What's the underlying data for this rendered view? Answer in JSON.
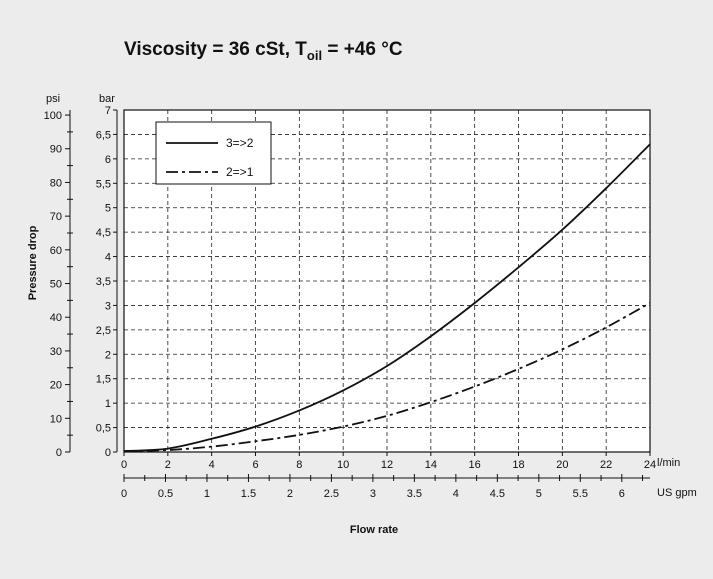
{
  "chart_data": {
    "type": "line",
    "title": {
      "prefix": "Viscosity = 36 cSt, T",
      "subscript": "oil",
      "suffix": " = +46 °C"
    },
    "ylabel": "Pressure drop",
    "xlabel": "Flow rate",
    "units": {
      "bar": "bar",
      "psi": "psi",
      "lmin": "l/min",
      "usgpm": "US gpm"
    },
    "x_lmin": {
      "range": [
        0,
        24
      ],
      "ticks": [
        "0",
        "2",
        "4",
        "6",
        "8",
        "10",
        "12",
        "14",
        "16",
        "18",
        "20",
        "22",
        "24"
      ]
    },
    "x_usgpm": {
      "range": [
        0,
        6.34
      ],
      "ticks": [
        {
          "v": 0,
          "label": "0"
        },
        {
          "v": 0.5,
          "label": "0.5"
        },
        {
          "v": 1,
          "label": "1"
        },
        {
          "v": 1.5,
          "label": "1.5"
        },
        {
          "v": 2,
          "label": "2"
        },
        {
          "v": 2.5,
          "label": "2.5"
        },
        {
          "v": 3,
          "label": "3"
        },
        {
          "v": 3.5,
          "label": "3.5"
        },
        {
          "v": 4,
          "label": "4"
        },
        {
          "v": 4.5,
          "label": "4.5"
        },
        {
          "v": 5,
          "label": "5"
        },
        {
          "v": 5.5,
          "label": "5.5"
        },
        {
          "v": 6,
          "label": "6"
        }
      ]
    },
    "y_bar": {
      "range": [
        0,
        7
      ],
      "ticks": [
        {
          "v": 0,
          "label": "0"
        },
        {
          "v": 0.5,
          "label": "0,5"
        },
        {
          "v": 1,
          "label": "1"
        },
        {
          "v": 1.5,
          "label": "1,5"
        },
        {
          "v": 2,
          "label": "2"
        },
        {
          "v": 2.5,
          "label": "2,5"
        },
        {
          "v": 3,
          "label": "3"
        },
        {
          "v": 3.5,
          "label": "3,5"
        },
        {
          "v": 4,
          "label": "4"
        },
        {
          "v": 4.5,
          "label": "4,5"
        },
        {
          "v": 5,
          "label": "5"
        },
        {
          "v": 5.5,
          "label": "5,5"
        },
        {
          "v": 6,
          "label": "6"
        },
        {
          "v": 6.5,
          "label": "6,5"
        },
        {
          "v": 7,
          "label": "7"
        }
      ]
    },
    "y_psi": {
      "range": [
        0,
        101.5
      ],
      "ticks": [
        {
          "v": 0,
          "label": "0"
        },
        {
          "v": 10,
          "label": "10"
        },
        {
          "v": 20,
          "label": "20"
        },
        {
          "v": 30,
          "label": "30"
        },
        {
          "v": 40,
          "label": "40"
        },
        {
          "v": 50,
          "label": "50"
        },
        {
          "v": 60,
          "label": "60"
        },
        {
          "v": 70,
          "label": "70"
        },
        {
          "v": 80,
          "label": "80"
        },
        {
          "v": 90,
          "label": "90"
        },
        {
          "v": 100,
          "label": "100"
        }
      ]
    },
    "grid": true,
    "legend_position": "top-left",
    "series": [
      {
        "name": "3=>2",
        "style": "solid",
        "x": [
          0,
          2,
          4,
          6,
          8,
          10,
          12,
          14,
          16,
          18,
          20,
          22,
          24
        ],
        "y": [
          0.02,
          0.07,
          0.27,
          0.52,
          0.85,
          1.26,
          1.76,
          2.37,
          3.05,
          3.78,
          4.55,
          5.4,
          6.3
        ]
      },
      {
        "name": "2=>1",
        "style": "dashdot",
        "x": [
          0,
          2,
          4,
          6,
          8,
          10,
          12,
          14,
          16,
          18,
          20,
          22,
          24
        ],
        "y": [
          0.02,
          0.04,
          0.11,
          0.22,
          0.35,
          0.52,
          0.74,
          1.02,
          1.34,
          1.7,
          2.1,
          2.55,
          3.05
        ]
      }
    ]
  }
}
